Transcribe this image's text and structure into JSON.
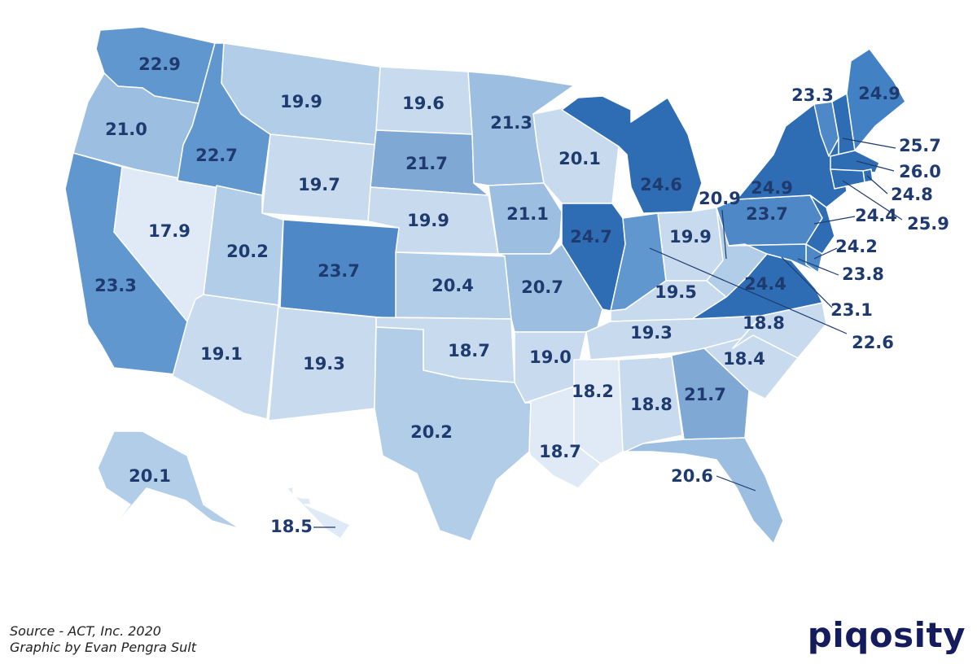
{
  "colors": {
    "scale": [
      "#dfeaf6",
      "#c8dbee",
      "#b2cde8",
      "#9cbee0",
      "#7fa8d5",
      "#6197cf",
      "#4f88c6",
      "#4282c4",
      "#2e6db3"
    ],
    "label": "#1e3a6e",
    "logo": "#151c5e"
  },
  "states": [
    {
      "code": "WA",
      "value": "22.9"
    },
    {
      "code": "OR",
      "value": "21.0"
    },
    {
      "code": "CA",
      "value": "23.3"
    },
    {
      "code": "NV",
      "value": "17.9"
    },
    {
      "code": "ID",
      "value": "22.7"
    },
    {
      "code": "MT",
      "value": "19.9"
    },
    {
      "code": "WY",
      "value": "19.7"
    },
    {
      "code": "UT",
      "value": "20.2"
    },
    {
      "code": "AZ",
      "value": "19.1"
    },
    {
      "code": "CO",
      "value": "23.7"
    },
    {
      "code": "NM",
      "value": "19.3"
    },
    {
      "code": "ND",
      "value": "19.6"
    },
    {
      "code": "SD",
      "value": "21.7"
    },
    {
      "code": "NE",
      "value": "19.9"
    },
    {
      "code": "KS",
      "value": "20.4"
    },
    {
      "code": "OK",
      "value": "18.7"
    },
    {
      "code": "TX",
      "value": "20.2"
    },
    {
      "code": "MN",
      "value": "21.3"
    },
    {
      "code": "IA",
      "value": "21.1"
    },
    {
      "code": "MO",
      "value": "20.7"
    },
    {
      "code": "AR",
      "value": "19.0"
    },
    {
      "code": "LA",
      "value": "18.7"
    },
    {
      "code": "WI",
      "value": "20.1"
    },
    {
      "code": "IL",
      "value": "24.7"
    },
    {
      "code": "MI",
      "value": "24.6"
    },
    {
      "code": "IN",
      "value": "22.6"
    },
    {
      "code": "OH",
      "value": "19.9"
    },
    {
      "code": "KY",
      "value": "19.5"
    },
    {
      "code": "TN",
      "value": "19.3"
    },
    {
      "code": "MS",
      "value": "18.2"
    },
    {
      "code": "AL",
      "value": "18.8"
    },
    {
      "code": "GA",
      "value": "21.7"
    },
    {
      "code": "FL",
      "value": "20.6"
    },
    {
      "code": "SC",
      "value": "18.4"
    },
    {
      "code": "NC",
      "value": "18.8"
    },
    {
      "code": "VA",
      "value": "24.4"
    },
    {
      "code": "WV",
      "value": "20.9"
    },
    {
      "code": "PA",
      "value": "23.7"
    },
    {
      "code": "NY",
      "value": "24.9"
    },
    {
      "code": "VT",
      "value": "23.3"
    },
    {
      "code": "NH",
      "value": "25.7"
    },
    {
      "code": "ME",
      "value": "24.9"
    },
    {
      "code": "MA",
      "value": "26.0"
    },
    {
      "code": "RI",
      "value": "24.8"
    },
    {
      "code": "CT",
      "value": "25.9"
    },
    {
      "code": "NJ",
      "value": "24.4"
    },
    {
      "code": "DE",
      "value": "24.2"
    },
    {
      "code": "MD",
      "value": "23.8"
    },
    {
      "code": "DC",
      "value": "23.1"
    },
    {
      "code": "AK",
      "value": "20.1"
    },
    {
      "code": "HI",
      "value": "18.5"
    }
  ],
  "footer": {
    "source": "Source - ACT, Inc. 2020",
    "credit": "Graphic by Evan Pengra Sult"
  },
  "logo": "piqosity"
}
